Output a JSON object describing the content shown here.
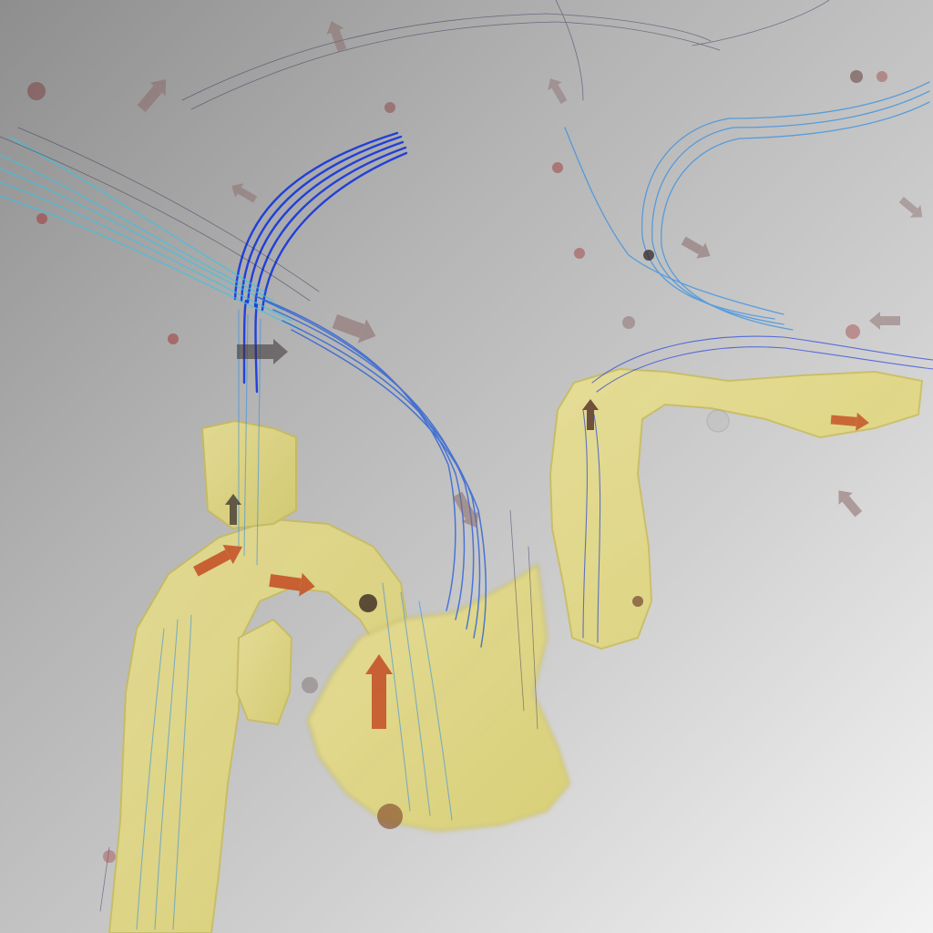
{
  "scene": {
    "vessel_color": "#e6dc6e",
    "vessel_edge_color": "#bfb24a",
    "background_dark": "#8e8e8e",
    "background_light": "#f3f3f3",
    "streamline_colors": [
      "#0a2ee0",
      "#1f5ad8",
      "#2c8ce6",
      "#33c6e8",
      "#1a1a4a"
    ],
    "arrow_colors": {
      "warm": "#c5552a",
      "dark": "#3a3030",
      "faded": "#8a6a6a"
    }
  }
}
